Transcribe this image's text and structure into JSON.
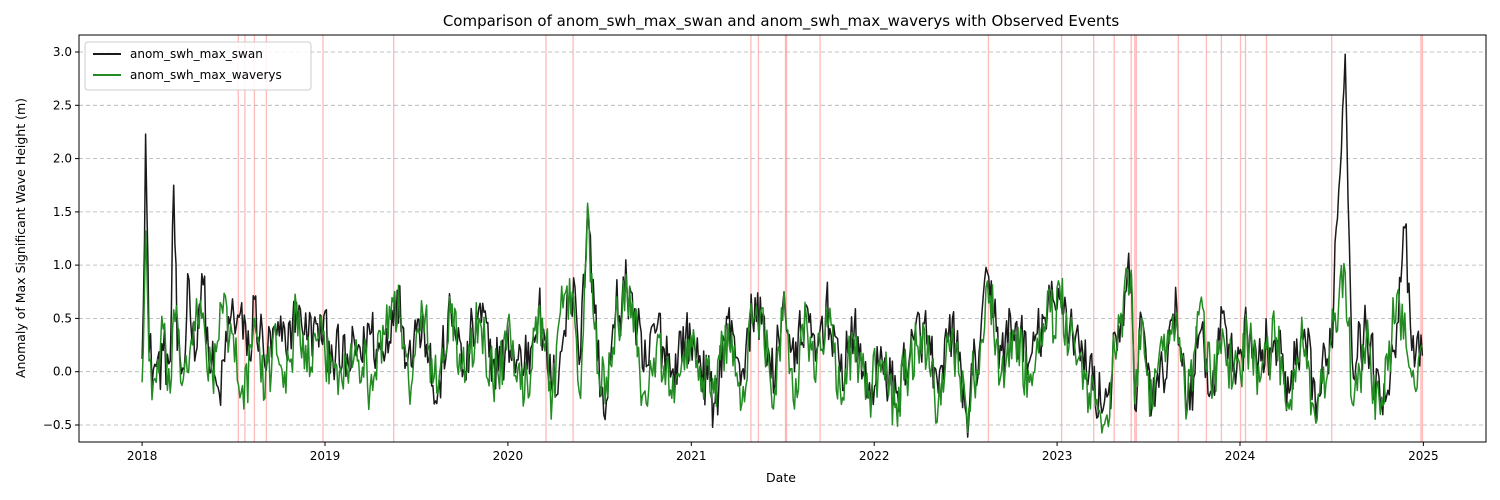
{
  "chart_data": {
    "type": "line",
    "title": "Comparison of anom_swh_max_swan and anom_swh_max_waverys with Observed Events",
    "xlabel": "Date",
    "ylabel": "Anomaly of Max Significant Wave Height (m)",
    "x_range": [
      "2017-08-28",
      "2025-05-06"
    ],
    "ylim": [
      -0.66,
      3.16
    ],
    "x_ticks": [
      "2018-01-01",
      "2019-01-01",
      "2020-01-01",
      "2021-01-01",
      "2022-01-01",
      "2023-01-01",
      "2024-01-01",
      "2025-01-01"
    ],
    "x_tick_labels": [
      "2018",
      "2019",
      "2020",
      "2021",
      "2022",
      "2023",
      "2024",
      "2025"
    ],
    "y_ticks": [
      -0.5,
      0.0,
      0.5,
      1.0,
      1.5,
      2.0,
      2.5,
      3.0
    ],
    "y_tick_labels": [
      "−0.5",
      "0.0",
      "0.5",
      "1.0",
      "1.5",
      "2.0",
      "2.5",
      "3.0"
    ],
    "grid": "y-dashed",
    "legend_position": "top-left",
    "series": [
      {
        "name": "anom_swh_max_swan",
        "color": "#1a1a1a",
        "points": [
          [
            "2018-01-01",
            0.12
          ],
          [
            "2018-01-08",
            2.23
          ],
          [
            "2018-01-15",
            0.18
          ],
          [
            "2018-01-29",
            0.05
          ],
          [
            "2018-02-12",
            0.2
          ],
          [
            "2018-02-26",
            0.1
          ],
          [
            "2018-03-05",
            1.75
          ],
          [
            "2018-03-12",
            0.2
          ],
          [
            "2018-03-26",
            0.02
          ],
          [
            "2018-04-02",
            0.92
          ],
          [
            "2018-04-16",
            0.1
          ],
          [
            "2018-04-23",
            0.55
          ],
          [
            "2018-04-30",
            0.92
          ],
          [
            "2018-05-14",
            0.1
          ],
          [
            "2018-06-04",
            -0.2
          ],
          [
            "2018-06-25",
            0.45
          ],
          [
            "2018-07-16",
            0.55
          ],
          [
            "2018-08-06",
            0.1
          ],
          [
            "2018-08-13",
            0.68
          ],
          [
            "2018-09-03",
            0.05
          ],
          [
            "2018-09-24",
            0.4
          ],
          [
            "2018-10-15",
            0.2
          ],
          [
            "2018-11-05",
            0.65
          ],
          [
            "2018-11-26",
            0.3
          ],
          [
            "2018-12-17",
            0.45
          ],
          [
            "2019-01-14",
            0.25
          ],
          [
            "2019-02-04",
            0.05
          ],
          [
            "2019-03-04",
            0.15
          ],
          [
            "2019-04-01",
            0.35
          ],
          [
            "2019-04-29",
            0.1
          ],
          [
            "2019-05-20",
            0.75
          ],
          [
            "2019-06-17",
            0.2
          ],
          [
            "2019-07-15",
            0.55
          ],
          [
            "2019-08-12",
            -0.3
          ],
          [
            "2019-09-09",
            0.6
          ],
          [
            "2019-10-07",
            0.0
          ],
          [
            "2019-11-04",
            0.6
          ],
          [
            "2019-12-02",
            0.1
          ],
          [
            "2020-01-06",
            0.2
          ],
          [
            "2020-02-03",
            0.05
          ],
          [
            "2020-03-02",
            0.55
          ],
          [
            "2020-03-30",
            -0.2
          ],
          [
            "2020-04-20",
            0.3
          ],
          [
            "2020-05-11",
            0.88
          ],
          [
            "2020-05-25",
            0.15
          ],
          [
            "2020-06-08",
            1.55
          ],
          [
            "2020-06-22",
            0.55
          ],
          [
            "2020-07-13",
            -0.45
          ],
          [
            "2020-08-03",
            0.55
          ],
          [
            "2020-08-31",
            0.8
          ],
          [
            "2020-09-28",
            0.0
          ],
          [
            "2020-10-26",
            0.45
          ],
          [
            "2020-11-23",
            0.0
          ],
          [
            "2020-12-21",
            0.35
          ],
          [
            "2021-01-18",
            0.15
          ],
          [
            "2021-02-15",
            -0.3
          ],
          [
            "2021-03-15",
            0.5
          ],
          [
            "2021-04-12",
            0.0
          ],
          [
            "2021-05-03",
            0.5
          ],
          [
            "2021-05-24",
            0.55
          ],
          [
            "2021-06-14",
            -0.2
          ],
          [
            "2021-07-05",
            0.75
          ],
          [
            "2021-07-26",
            0.0
          ],
          [
            "2021-08-16",
            0.6
          ],
          [
            "2021-09-06",
            0.1
          ],
          [
            "2021-09-27",
            0.65
          ],
          [
            "2021-10-25",
            0.0
          ],
          [
            "2021-11-22",
            0.4
          ],
          [
            "2021-12-20",
            -0.2
          ],
          [
            "2022-01-17",
            0.1
          ],
          [
            "2022-02-14",
            -0.2
          ],
          [
            "2022-03-14",
            0.2
          ],
          [
            "2022-04-11",
            0.45
          ],
          [
            "2022-05-09",
            -0.2
          ],
          [
            "2022-06-06",
            0.5
          ],
          [
            "2022-07-04",
            -0.4
          ],
          [
            "2022-08-01",
            0.3
          ],
          [
            "2022-08-15",
            0.93
          ],
          [
            "2022-09-12",
            0.2
          ],
          [
            "2022-10-10",
            0.45
          ],
          [
            "2022-11-07",
            0.1
          ],
          [
            "2022-12-05",
            0.5
          ],
          [
            "2023-01-09",
            0.7
          ],
          [
            "2023-02-06",
            0.3
          ],
          [
            "2023-03-06",
            0.0
          ],
          [
            "2023-04-03",
            -0.35
          ],
          [
            "2023-05-01",
            0.2
          ],
          [
            "2023-05-29",
            0.95
          ],
          [
            "2023-06-05",
            -0.35
          ],
          [
            "2023-06-19",
            0.5
          ],
          [
            "2023-07-10",
            -0.3
          ],
          [
            "2023-07-31",
            0.0
          ],
          [
            "2023-08-28",
            0.6
          ],
          [
            "2023-09-18",
            -0.3
          ],
          [
            "2023-10-16",
            0.4
          ],
          [
            "2023-11-06",
            -0.2
          ],
          [
            "2023-11-27",
            0.55
          ],
          [
            "2023-12-18",
            0.0
          ],
          [
            "2024-01-15",
            0.4
          ],
          [
            "2024-02-12",
            0.1
          ],
          [
            "2024-03-11",
            0.3
          ],
          [
            "2024-04-08",
            -0.2
          ],
          [
            "2024-05-06",
            0.3
          ],
          [
            "2024-06-03",
            -0.3
          ],
          [
            "2024-07-01",
            0.3
          ],
          [
            "2024-07-29",
            2.98
          ],
          [
            "2024-08-12",
            0.1
          ],
          [
            "2024-09-09",
            0.4
          ],
          [
            "2024-10-07",
            -0.3
          ],
          [
            "2024-11-04",
            0.2
          ],
          [
            "2024-11-25",
            1.35
          ],
          [
            "2024-12-09",
            0.2
          ],
          [
            "2024-12-30",
            0.15
          ]
        ]
      },
      {
        "name": "anom_swh_max_waverys",
        "color": "#228b22",
        "points": [
          [
            "2018-01-01",
            -0.1
          ],
          [
            "2018-01-08",
            1.32
          ],
          [
            "2018-01-15",
            0.1
          ],
          [
            "2018-01-29",
            -0.1
          ],
          [
            "2018-02-12",
            0.4
          ],
          [
            "2018-02-26",
            -0.2
          ],
          [
            "2018-03-05",
            0.58
          ],
          [
            "2018-03-19",
            -0.1
          ],
          [
            "2018-04-09",
            0.3
          ],
          [
            "2018-04-30",
            0.5
          ],
          [
            "2018-05-21",
            0.0
          ],
          [
            "2018-06-11",
            0.55
          ],
          [
            "2018-07-02",
            0.35
          ],
          [
            "2018-07-23",
            -0.35
          ],
          [
            "2018-08-13",
            0.5
          ],
          [
            "2018-09-03",
            -0.25
          ],
          [
            "2018-09-24",
            0.45
          ],
          [
            "2018-10-15",
            -0.2
          ],
          [
            "2018-11-05",
            0.6
          ],
          [
            "2018-11-26",
            0.0
          ],
          [
            "2018-12-17",
            0.3
          ],
          [
            "2019-01-14",
            0.1
          ],
          [
            "2019-02-04",
            -0.1
          ],
          [
            "2019-03-04",
            0.3
          ],
          [
            "2019-04-01",
            -0.15
          ],
          [
            "2019-04-29",
            0.35
          ],
          [
            "2019-05-20",
            0.75
          ],
          [
            "2019-06-17",
            -0.1
          ],
          [
            "2019-07-15",
            0.55
          ],
          [
            "2019-08-12",
            -0.2
          ],
          [
            "2019-09-09",
            0.55
          ],
          [
            "2019-10-07",
            -0.1
          ],
          [
            "2019-11-04",
            0.5
          ],
          [
            "2019-12-02",
            -0.1
          ],
          [
            "2020-01-06",
            0.35
          ],
          [
            "2020-02-03",
            -0.25
          ],
          [
            "2020-03-02",
            0.6
          ],
          [
            "2020-03-30",
            -0.2
          ],
          [
            "2020-04-20",
            0.6
          ],
          [
            "2020-05-11",
            0.7
          ],
          [
            "2020-05-25",
            -0.25
          ],
          [
            "2020-06-08",
            1.58
          ],
          [
            "2020-06-22",
            0.4
          ],
          [
            "2020-07-13",
            -0.3
          ],
          [
            "2020-08-03",
            0.55
          ],
          [
            "2020-08-31",
            0.8
          ],
          [
            "2020-09-28",
            -0.2
          ],
          [
            "2020-10-26",
            0.35
          ],
          [
            "2020-11-23",
            -0.25
          ],
          [
            "2020-12-21",
            0.3
          ],
          [
            "2021-01-18",
            0.05
          ],
          [
            "2021-02-15",
            -0.2
          ],
          [
            "2021-03-15",
            0.45
          ],
          [
            "2021-04-12",
            -0.3
          ],
          [
            "2021-05-03",
            0.45
          ],
          [
            "2021-05-24",
            0.6
          ],
          [
            "2021-06-14",
            -0.35
          ],
          [
            "2021-07-05",
            0.75
          ],
          [
            "2021-07-26",
            -0.35
          ],
          [
            "2021-08-16",
            0.65
          ],
          [
            "2021-09-06",
            -0.1
          ],
          [
            "2021-09-27",
            0.6
          ],
          [
            "2021-10-25",
            -0.15
          ],
          [
            "2021-11-22",
            0.3
          ],
          [
            "2021-12-20",
            -0.25
          ],
          [
            "2022-01-17",
            0.1
          ],
          [
            "2022-02-14",
            -0.3
          ],
          [
            "2022-03-14",
            0.15
          ],
          [
            "2022-04-11",
            0.4
          ],
          [
            "2022-05-09",
            -0.3
          ],
          [
            "2022-06-06",
            0.4
          ],
          [
            "2022-07-04",
            -0.35
          ],
          [
            "2022-08-01",
            0.25
          ],
          [
            "2022-08-15",
            0.85
          ],
          [
            "2022-09-12",
            0.0
          ],
          [
            "2022-10-10",
            0.35
          ],
          [
            "2022-11-07",
            -0.1
          ],
          [
            "2022-12-05",
            0.45
          ],
          [
            "2023-01-09",
            0.6
          ],
          [
            "2023-02-06",
            0.2
          ],
          [
            "2023-03-06",
            -0.2
          ],
          [
            "2023-04-03",
            -0.5
          ],
          [
            "2023-05-01",
            0.25
          ],
          [
            "2023-05-29",
            0.95
          ],
          [
            "2023-06-05",
            -0.3
          ],
          [
            "2023-06-19",
            0.5
          ],
          [
            "2023-07-10",
            -0.35
          ],
          [
            "2023-07-31",
            0.2
          ],
          [
            "2023-08-28",
            0.55
          ],
          [
            "2023-09-18",
            -0.35
          ],
          [
            "2023-10-16",
            0.7
          ],
          [
            "2023-11-06",
            -0.25
          ],
          [
            "2023-11-27",
            0.4
          ],
          [
            "2023-12-18",
            -0.1
          ],
          [
            "2024-01-15",
            0.35
          ],
          [
            "2024-02-12",
            -0.05
          ],
          [
            "2024-03-11",
            0.3
          ],
          [
            "2024-04-08",
            -0.35
          ],
          [
            "2024-05-06",
            0.25
          ],
          [
            "2024-06-03",
            -0.45
          ],
          [
            "2024-07-01",
            0.3
          ],
          [
            "2024-07-29",
            0.93
          ],
          [
            "2024-08-12",
            -0.3
          ],
          [
            "2024-09-09",
            0.3
          ],
          [
            "2024-10-07",
            -0.4
          ],
          [
            "2024-11-04",
            0.45
          ],
          [
            "2024-11-25",
            0.55
          ],
          [
            "2024-12-09",
            -0.05
          ],
          [
            "2024-12-30",
            0.25
          ]
        ]
      }
    ],
    "event_lines": {
      "color": "#ff6666",
      "dates": [
        "2018-07-12",
        "2018-07-25",
        "2018-08-13",
        "2018-09-06",
        "2018-12-28",
        "2019-05-18",
        "2020-03-17",
        "2020-05-10",
        "2021-04-30",
        "2021-05-15",
        "2021-07-08",
        "2021-07-10",
        "2021-09-15",
        "2022-08-17",
        "2023-01-10",
        "2023-03-15",
        "2023-04-25",
        "2023-05-29",
        "2023-06-05",
        "2023-06-08",
        "2023-08-31",
        "2023-10-26",
        "2023-11-25",
        "2024-01-02",
        "2024-01-12",
        "2024-02-23",
        "2024-07-02",
        "2024-12-27",
        "2024-12-30"
      ]
    }
  }
}
